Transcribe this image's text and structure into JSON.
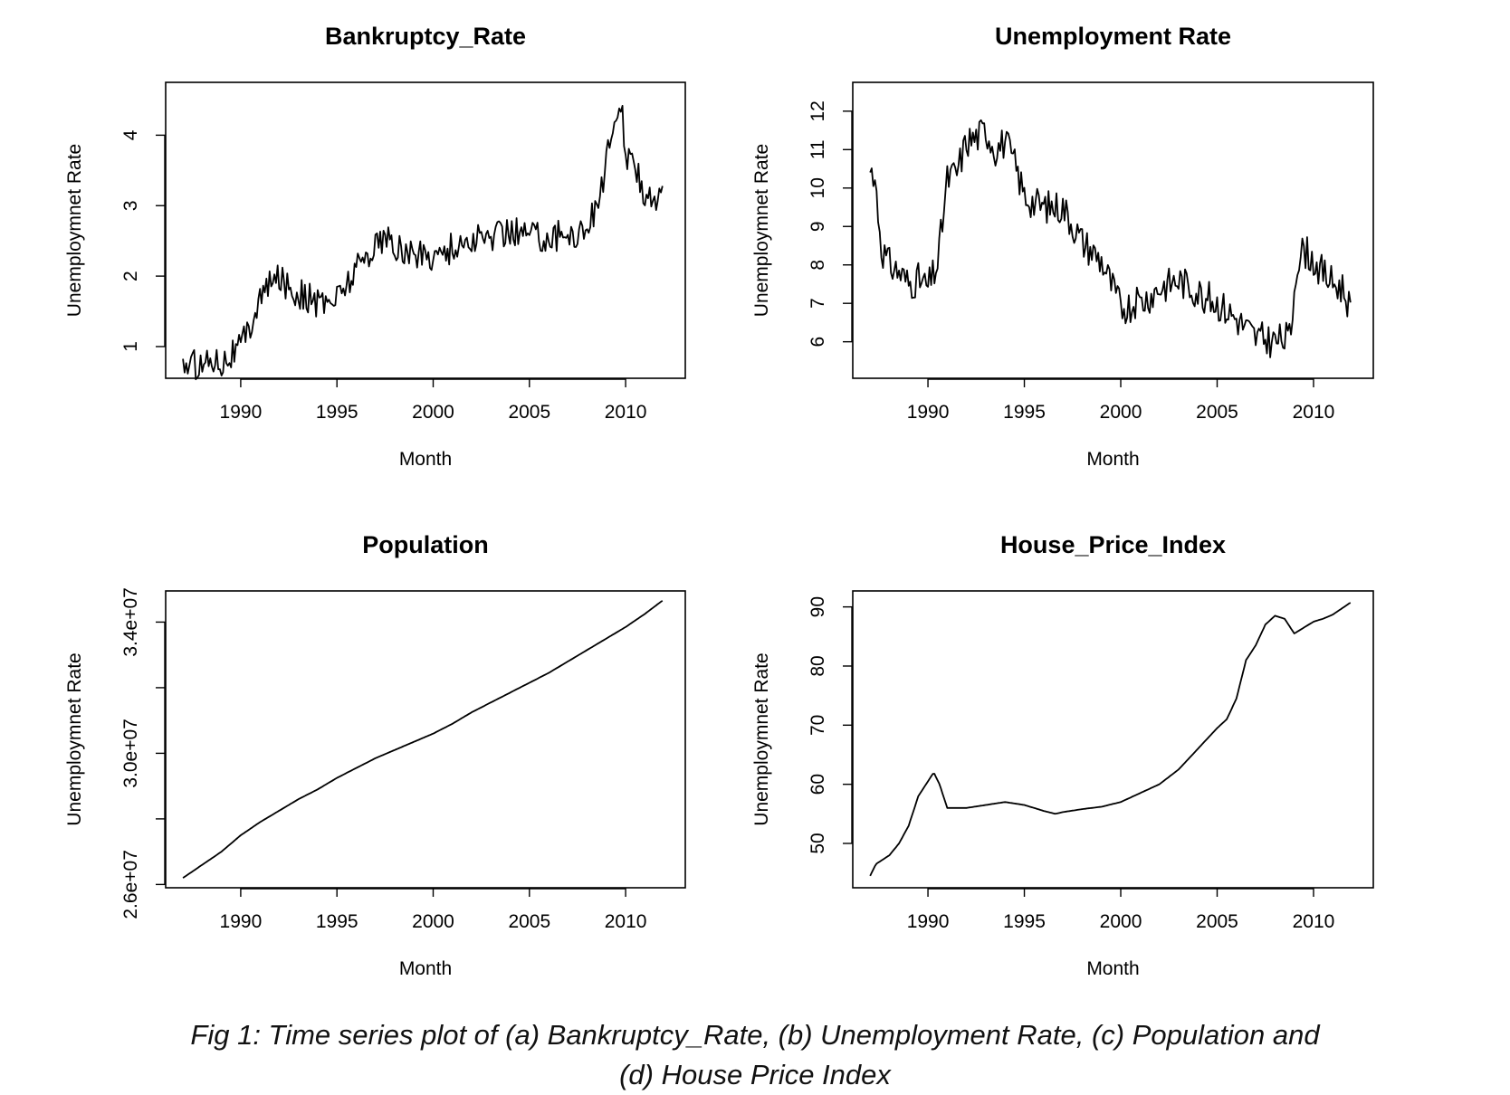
{
  "chart_data": [
    {
      "type": "line",
      "title": "Bankruptcy_Rate",
      "xlabel": "Month",
      "ylabel": "Unemploymnet Rate",
      "xlim": [
        1986.1,
        2013.1
      ],
      "ylim": [
        0.55,
        4.75
      ],
      "xticks": [
        1990,
        1995,
        2000,
        2005,
        2010
      ],
      "xtick_labels": [
        "1990",
        "1995",
        "2000",
        "2005",
        "2010"
      ],
      "yticks": [
        1,
        2,
        3,
        4
      ],
      "ytick_labels": [
        "1",
        "2",
        "3",
        "4"
      ],
      "noise": 0.22,
      "series": [
        {
          "x": [
            1987.0,
            1988.0,
            1988.5,
            1989.0,
            1989.5,
            1990.0,
            1990.5,
            1991.0,
            1991.5,
            1992.0,
            1992.5,
            1993.0,
            1993.5,
            1994.0,
            1994.5,
            1995.0,
            1995.5,
            1996.0,
            1996.5,
            1997.0,
            1997.5,
            1998.0,
            1999.0,
            2000.0,
            2001.0,
            2002.0,
            2003.0,
            2004.0,
            2005.0,
            2006.0,
            2007.0,
            2007.5,
            2008.0,
            2008.5,
            2009.0,
            2009.3,
            2009.6,
            2009.8,
            2010.0,
            2010.5,
            2011.0,
            2011.5,
            2011.9
          ],
          "values": [
            0.75,
            0.75,
            0.85,
            0.8,
            0.9,
            1.0,
            1.3,
            1.7,
            1.85,
            2.0,
            1.85,
            1.75,
            1.7,
            1.6,
            1.65,
            1.7,
            1.9,
            2.1,
            2.3,
            2.45,
            2.55,
            2.4,
            2.3,
            2.3,
            2.4,
            2.5,
            2.55,
            2.65,
            2.6,
            2.55,
            2.6,
            2.6,
            2.7,
            3.0,
            3.6,
            4.05,
            4.1,
            4.5,
            3.7,
            3.5,
            3.2,
            3.15,
            3.1
          ]
        }
      ]
    },
    {
      "type": "line",
      "title": "Unemployment Rate",
      "xlabel": "Month",
      "ylabel": "Unemploymnet Rate",
      "xlim": [
        1986.1,
        2013.1
      ],
      "ylim": [
        5.05,
        12.75
      ],
      "xticks": [
        1990,
        1995,
        2000,
        2005,
        2010
      ],
      "xtick_labels": [
        "1990",
        "1995",
        "2000",
        "2005",
        "2010"
      ],
      "yticks": [
        6,
        7,
        8,
        9,
        10,
        11,
        12
      ],
      "ytick_labels": [
        "6",
        "7",
        "8",
        "9",
        "10",
        "11",
        "12"
      ],
      "noise": 0.45,
      "series": [
        {
          "x": [
            1987.0,
            1987.2,
            1987.6,
            1988.0,
            1988.5,
            1989.0,
            1989.5,
            1990.0,
            1990.5,
            1991.0,
            1991.5,
            1992.0,
            1992.5,
            1993.0,
            1993.5,
            1994.0,
            1994.5,
            1995.0,
            1995.5,
            1996.0,
            1997.0,
            1998.0,
            1999.0,
            2000.0,
            2001.0,
            2002.0,
            2003.0,
            2004.0,
            2005.0,
            2006.0,
            2007.0,
            2008.0,
            2008.8,
            2009.1,
            2009.5,
            2010.0,
            2010.5,
            2011.0,
            2011.5,
            2011.9
          ],
          "values": [
            10.4,
            10.5,
            8.4,
            8.0,
            7.8,
            7.5,
            7.6,
            7.4,
            8.0,
            10.2,
            10.4,
            11.2,
            11.3,
            11.5,
            11.0,
            11.2,
            10.6,
            9.8,
            9.6,
            9.5,
            9.5,
            8.6,
            8.1,
            6.9,
            7.0,
            7.4,
            7.6,
            7.3,
            7.0,
            6.6,
            6.1,
            6.0,
            6.1,
            8.0,
            8.4,
            8.1,
            7.8,
            7.5,
            7.4,
            6.9
          ]
        }
      ]
    },
    {
      "type": "line",
      "title": "Population",
      "xlabel": "Month",
      "ylabel": "Unemploymnet Rate",
      "xlim": [
        1986.1,
        2013.1
      ],
      "ylim": [
        25900000,
        34950000
      ],
      "xticks": [
        1990,
        1995,
        2000,
        2005,
        2010
      ],
      "xtick_labels": [
        "1990",
        "1995",
        "2000",
        "2005",
        "2010"
      ],
      "yticks": [
        26000000,
        28000000,
        30000000,
        32000000,
        34000000
      ],
      "ytick_labels": [
        "2.6e+07",
        "",
        "3.0e+07",
        "",
        "3.4e+07"
      ],
      "noise": 0,
      "series": [
        {
          "x": [
            1987.0,
            1988.0,
            1989.0,
            1990.0,
            1991.0,
            1992.0,
            1993.0,
            1994.0,
            1995.0,
            1996.0,
            1997.0,
            1998.0,
            1999.0,
            2000.0,
            2001.0,
            2002.0,
            2003.0,
            2004.0,
            2005.0,
            2006.0,
            2007.0,
            2008.0,
            2009.0,
            2010.0,
            2011.0,
            2011.9
          ],
          "values": [
            26200000,
            26600000,
            27000000,
            27500000,
            27900000,
            28250000,
            28600000,
            28900000,
            29250000,
            29550000,
            29850000,
            30100000,
            30350000,
            30600000,
            30900000,
            31250000,
            31550000,
            31850000,
            32150000,
            32450000,
            32800000,
            33150000,
            33500000,
            33850000,
            34250000,
            34650000
          ]
        }
      ]
    },
    {
      "type": "line",
      "title": "House_Price_Index",
      "xlabel": "Month",
      "ylabel": "Unemploymnet Rate",
      "xlim": [
        1986.1,
        2013.1
      ],
      "ylim": [
        42.5,
        92.7
      ],
      "xticks": [
        1990,
        1995,
        2000,
        2005,
        2010
      ],
      "xtick_labels": [
        "1990",
        "1995",
        "2000",
        "2005",
        "2010"
      ],
      "yticks": [
        50,
        60,
        70,
        80,
        90
      ],
      "ytick_labels": [
        "50",
        "60",
        "70",
        "80",
        "90"
      ],
      "noise": 0,
      "series": [
        {
          "x": [
            1987.0,
            1987.3,
            1988.0,
            1988.5,
            1989.0,
            1989.5,
            1990.0,
            1990.3,
            1990.6,
            1991.0,
            1992.0,
            1993.0,
            1994.0,
            1995.0,
            1996.0,
            1996.6,
            1997.0,
            1998.0,
            1999.0,
            2000.0,
            2001.0,
            2002.0,
            2003.0,
            2004.0,
            2005.0,
            2005.5,
            2006.0,
            2006.5,
            2007.0,
            2007.5,
            2008.0,
            2008.5,
            2009.0,
            2009.5,
            2010.0,
            2010.5,
            2011.0,
            2011.5,
            2011.9
          ],
          "values": [
            44.5,
            46.5,
            48.0,
            50.0,
            53.0,
            58.0,
            60.5,
            62.0,
            60.0,
            56.0,
            56.0,
            56.5,
            57.0,
            56.5,
            55.5,
            55.0,
            55.3,
            55.8,
            56.2,
            57.0,
            58.5,
            60.0,
            62.5,
            66.0,
            69.5,
            71.0,
            74.5,
            81.0,
            83.5,
            87.0,
            88.5,
            88.0,
            85.5,
            86.5,
            87.5,
            88.0,
            88.7,
            89.8,
            90.7
          ]
        }
      ]
    }
  ],
  "caption": {
    "line1": "Fig 1: Time series plot of (a) Bankruptcy_Rate, (b) Unemployment Rate,  (c) Population and",
    "line2": "(d) House Price Index"
  }
}
